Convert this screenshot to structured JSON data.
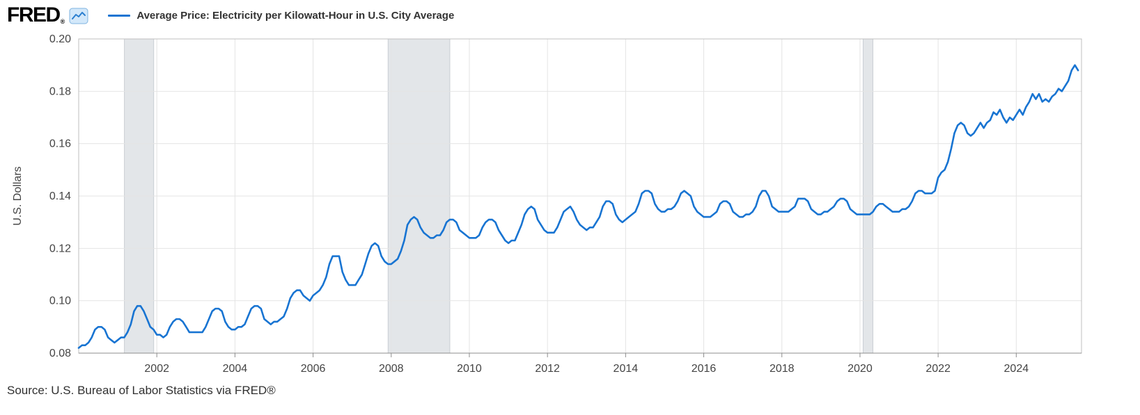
{
  "header": {
    "logo_text": "FRED",
    "logo_registered": "®",
    "legend": {
      "series_label": "Average Price: Electricity per Kilowatt-Hour in U.S. City Average"
    }
  },
  "footer": {
    "source_text": "Source: U.S. Bureau of Labor Statistics via FRED®"
  },
  "chart_data": {
    "type": "line",
    "title": "Average Price: Electricity per Kilowatt-Hour in U.S. City Average",
    "xlabel": "",
    "ylabel": "U.S. Dollars",
    "ylim": [
      0.08,
      0.2
    ],
    "yticks": [
      0.08,
      0.1,
      0.12,
      0.14,
      0.16,
      0.18,
      0.2
    ],
    "xlim": [
      2000.0,
      2025.67
    ],
    "xticks": [
      2002,
      2004,
      2006,
      2008,
      2010,
      2012,
      2014,
      2016,
      2018,
      2020,
      2022,
      2024
    ],
    "grid": true,
    "legend_position": "top",
    "line_color": "#1874d2",
    "band_color": "#e3e6e9",
    "band_edge_color": "#c9ced3",
    "grid_color": "#e4e4e4",
    "recession_bands": [
      [
        2001.17,
        2001.92
      ],
      [
        2007.92,
        2009.5
      ],
      [
        2020.08,
        2020.33
      ]
    ],
    "series": [
      {
        "name": "Average Price: Electricity per Kilowatt-Hour in U.S. City Average",
        "start_year": 2000,
        "frequency": "monthly",
        "values": [
          0.082,
          0.083,
          0.083,
          0.084,
          0.086,
          0.089,
          0.09,
          0.09,
          0.089,
          0.086,
          0.085,
          0.084,
          0.085,
          0.086,
          0.086,
          0.088,
          0.091,
          0.096,
          0.098,
          0.098,
          0.096,
          0.093,
          0.09,
          0.089,
          0.087,
          0.087,
          0.086,
          0.087,
          0.09,
          0.092,
          0.093,
          0.093,
          0.092,
          0.09,
          0.088,
          0.088,
          0.088,
          0.088,
          0.088,
          0.09,
          0.093,
          0.096,
          0.097,
          0.097,
          0.096,
          0.092,
          0.09,
          0.089,
          0.089,
          0.09,
          0.09,
          0.091,
          0.094,
          0.097,
          0.098,
          0.098,
          0.097,
          0.093,
          0.092,
          0.091,
          0.092,
          0.092,
          0.093,
          0.094,
          0.097,
          0.101,
          0.103,
          0.104,
          0.104,
          0.102,
          0.101,
          0.1,
          0.102,
          0.103,
          0.104,
          0.106,
          0.109,
          0.114,
          0.117,
          0.117,
          0.117,
          0.111,
          0.108,
          0.106,
          0.106,
          0.106,
          0.108,
          0.11,
          0.114,
          0.118,
          0.121,
          0.122,
          0.121,
          0.117,
          0.115,
          0.114,
          0.114,
          0.115,
          0.116,
          0.119,
          0.123,
          0.129,
          0.131,
          0.132,
          0.131,
          0.128,
          0.126,
          0.125,
          0.124,
          0.124,
          0.125,
          0.125,
          0.127,
          0.13,
          0.131,
          0.131,
          0.13,
          0.127,
          0.126,
          0.125,
          0.124,
          0.124,
          0.124,
          0.125,
          0.128,
          0.13,
          0.131,
          0.131,
          0.13,
          0.127,
          0.125,
          0.123,
          0.122,
          0.123,
          0.123,
          0.126,
          0.129,
          0.133,
          0.135,
          0.136,
          0.135,
          0.131,
          0.129,
          0.127,
          0.126,
          0.126,
          0.126,
          0.128,
          0.131,
          0.134,
          0.135,
          0.136,
          0.134,
          0.131,
          0.129,
          0.128,
          0.127,
          0.128,
          0.128,
          0.13,
          0.132,
          0.136,
          0.138,
          0.138,
          0.137,
          0.133,
          0.131,
          0.13,
          0.131,
          0.132,
          0.133,
          0.134,
          0.137,
          0.141,
          0.142,
          0.142,
          0.141,
          0.137,
          0.135,
          0.134,
          0.134,
          0.135,
          0.135,
          0.136,
          0.138,
          0.141,
          0.142,
          0.141,
          0.14,
          0.136,
          0.134,
          0.133,
          0.132,
          0.132,
          0.132,
          0.133,
          0.134,
          0.137,
          0.138,
          0.138,
          0.137,
          0.134,
          0.133,
          0.132,
          0.132,
          0.133,
          0.133,
          0.134,
          0.136,
          0.14,
          0.142,
          0.142,
          0.14,
          0.136,
          0.135,
          0.134,
          0.134,
          0.134,
          0.134,
          0.135,
          0.136,
          0.139,
          0.139,
          0.139,
          0.138,
          0.135,
          0.134,
          0.133,
          0.133,
          0.134,
          0.134,
          0.135,
          0.136,
          0.138,
          0.139,
          0.139,
          0.138,
          0.135,
          0.134,
          0.133,
          0.133,
          0.133,
          0.133,
          0.133,
          0.134,
          0.136,
          0.137,
          0.137,
          0.136,
          0.135,
          0.134,
          0.134,
          0.134,
          0.135,
          0.135,
          0.136,
          0.138,
          0.141,
          0.142,
          0.142,
          0.141,
          0.141,
          0.141,
          0.142,
          0.147,
          0.149,
          0.15,
          0.153,
          0.158,
          0.164,
          0.167,
          0.168,
          0.167,
          0.164,
          0.163,
          0.164,
          0.166,
          0.168,
          0.166,
          0.168,
          0.169,
          0.172,
          0.171,
          0.173,
          0.17,
          0.168,
          0.17,
          0.169,
          0.171,
          0.173,
          0.171,
          0.174,
          0.176,
          0.179,
          0.177,
          0.179,
          0.176,
          0.177,
          0.176,
          0.178,
          0.179,
          0.181,
          0.18,
          0.182,
          0.184,
          0.188,
          0.19,
          0.188
        ]
      }
    ]
  }
}
